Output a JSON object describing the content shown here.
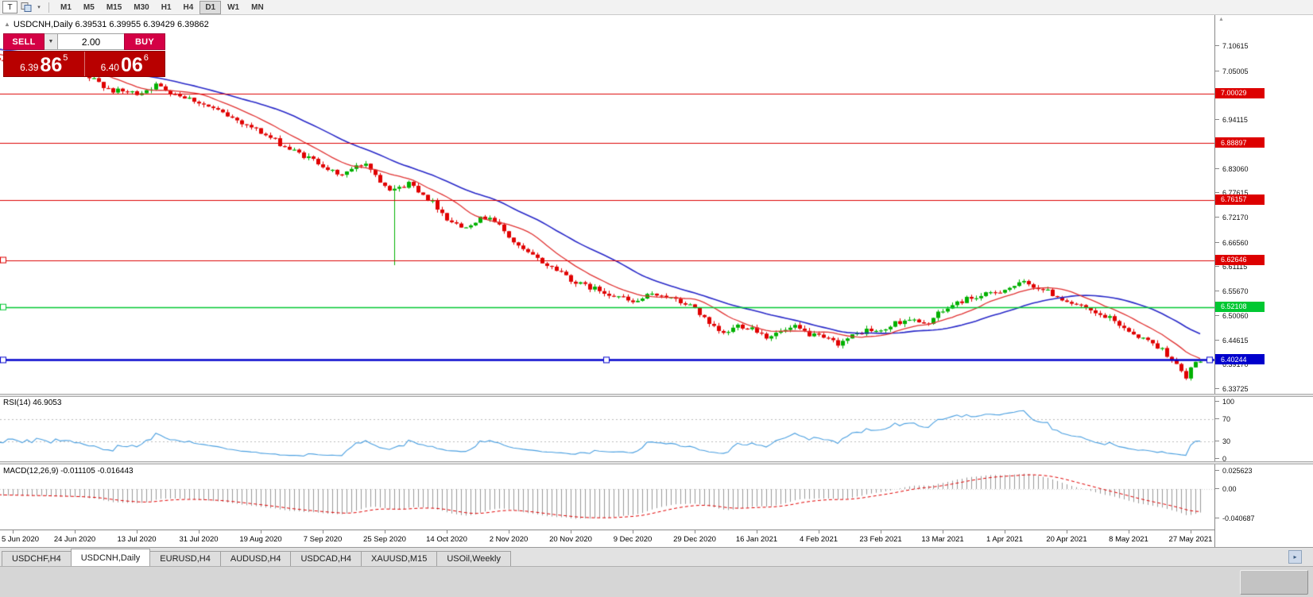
{
  "toolbar": {
    "tool_button": "T",
    "timeframes": [
      "M1",
      "M5",
      "M15",
      "M30",
      "H1",
      "H4",
      "D1",
      "W1",
      "MN"
    ],
    "active_timeframe": "D1"
  },
  "chart": {
    "title": "USDCNH,Daily 6.39531 6.39955 6.39429 6.39862"
  },
  "trade_panel": {
    "sell_label": "SELL",
    "buy_label": "BUY",
    "volume": "2.00",
    "sell_price": {
      "main": "6.39",
      "pips": "86",
      "pt": "5"
    },
    "buy_price": {
      "main": "6.40",
      "pips": "06",
      "pt": "6"
    }
  },
  "price_axis": {
    "labels": [
      "7.10615",
      "7.05005",
      "6.94115",
      "6.83060",
      "6.77615",
      "6.72170",
      "6.66560",
      "6.61115",
      "6.55670",
      "6.50060",
      "6.44615",
      "6.39170",
      "6.33725"
    ]
  },
  "rsi": {
    "label": "RSI(14) 46.9053",
    "axis": [
      "100",
      "70",
      "30",
      "0"
    ]
  },
  "macd": {
    "label": "MACD(12,26,9) -0.011105 -0.016443",
    "axis": [
      "0.025623",
      "0.00",
      "-0.040687"
    ]
  },
  "date_axis": [
    "5 Jun 2020",
    "24 Jun 2020",
    "13 Jul 2020",
    "31 Jul 2020",
    "19 Aug 2020",
    "7 Sep 2020",
    "25 Sep 2020",
    "14 Oct 2020",
    "2 Nov 2020",
    "20 Nov 2020",
    "9 Dec 2020",
    "29 Dec 2020",
    "16 Jan 2021",
    "4 Feb 2021",
    "23 Feb 2021",
    "13 Mar 2021",
    "1 Apr 2021",
    "20 Apr 2021",
    "8 May 2021",
    "27 May 2021"
  ],
  "tabbar": {
    "tabs": [
      "USDCHF,H4",
      "USDCNH,Daily",
      "EURUSD,H4",
      "AUDUSD,H4",
      "USDCAD,H4",
      "XAUUSD,M15",
      "USOil,Weekly"
    ],
    "active": "USDCNH,Daily",
    "active_index": 1
  },
  "chart_data": {
    "type": "candlestick",
    "symbol": "USDCNH",
    "timeframe": "Daily",
    "ohlc_current": {
      "open": 6.39531,
      "high": 6.39955,
      "low": 6.39429,
      "close": 6.39862
    },
    "bid": 6.39865,
    "ask": 6.40066,
    "visible_price_range": {
      "min": 6.3337,
      "max": 7.165
    },
    "levels": [
      {
        "price": 7.00029,
        "color": "#dd0000",
        "width": 1.2,
        "handles": []
      },
      {
        "price": 6.88897,
        "color": "#dd0000",
        "width": 1.2,
        "handles": []
      },
      {
        "price": 6.76157,
        "color": "#dd0000",
        "width": 1.2,
        "handles": []
      },
      {
        "price": 6.62646,
        "color": "#dd0000",
        "width": 1.2,
        "handles": [
          0
        ]
      },
      {
        "price": 6.52108,
        "color": "#00c832",
        "width": 1.4,
        "handles": [
          0
        ]
      },
      {
        "price": 6.40244,
        "color": "#0000cc",
        "width": 2.4,
        "handles": [
          0,
          0.5,
          1
        ]
      }
    ],
    "price_anchors": [
      [
        -40,
        7.125
      ],
      [
        -30,
        7.115
      ],
      [
        -20,
        7.102
      ],
      [
        -12,
        7.096
      ],
      [
        -6,
        7.082
      ],
      [
        0,
        7.075
      ],
      [
        6,
        7.062
      ],
      [
        12,
        7.05
      ],
      [
        17,
        7.03
      ],
      [
        21,
        7.006
      ],
      [
        26,
        7.0
      ],
      [
        30,
        7.018
      ],
      [
        34,
        7.0
      ],
      [
        38,
        6.985
      ],
      [
        42,
        6.965
      ],
      [
        46,
        6.945
      ],
      [
        50,
        6.925
      ],
      [
        54,
        6.9
      ],
      [
        58,
        6.875
      ],
      [
        62,
        6.855
      ],
      [
        65,
        6.84
      ],
      [
        68,
        6.815
      ],
      [
        71,
        6.83
      ],
      [
        74,
        6.845
      ],
      [
        77,
        6.805
      ],
      [
        80,
        6.78
      ],
      [
        83,
        6.8
      ],
      [
        86,
        6.775
      ],
      [
        89,
        6.745
      ],
      [
        91,
        6.72
      ],
      [
        94,
        6.7
      ],
      [
        97,
        6.715
      ],
      [
        100,
        6.725
      ],
      [
        103,
        6.69
      ],
      [
        106,
        6.655
      ],
      [
        109,
        6.635
      ],
      [
        112,
        6.615
      ],
      [
        115,
        6.6
      ],
      [
        118,
        6.575
      ],
      [
        121,
        6.565
      ],
      [
        124,
        6.555
      ],
      [
        127,
        6.545
      ],
      [
        130,
        6.53
      ],
      [
        133,
        6.545
      ],
      [
        136,
        6.55
      ],
      [
        139,
        6.535
      ],
      [
        143,
        6.52
      ],
      [
        146,
        6.48
      ],
      [
        149,
        6.46
      ],
      [
        152,
        6.48
      ],
      [
        155,
        6.475
      ],
      [
        158,
        6.455
      ],
      [
        161,
        6.465
      ],
      [
        164,
        6.475
      ],
      [
        167,
        6.46
      ],
      [
        170,
        6.45
      ],
      [
        173,
        6.44
      ],
      [
        176,
        6.455
      ],
      [
        179,
        6.47
      ],
      [
        182,
        6.465
      ],
      [
        185,
        6.485
      ],
      [
        188,
        6.495
      ],
      [
        191,
        6.48
      ],
      [
        194,
        6.505
      ],
      [
        197,
        6.525
      ],
      [
        200,
        6.54
      ],
      [
        203,
        6.545
      ],
      [
        206,
        6.555
      ],
      [
        209,
        6.565
      ],
      [
        212,
        6.575
      ],
      [
        215,
        6.565
      ],
      [
        218,
        6.55
      ],
      [
        221,
        6.535
      ],
      [
        224,
        6.52
      ],
      [
        227,
        6.505
      ],
      [
        230,
        6.495
      ],
      [
        233,
        6.475
      ],
      [
        236,
        6.455
      ],
      [
        239,
        6.44
      ],
      [
        241,
        6.425
      ],
      [
        243,
        6.405
      ],
      [
        244,
        6.39
      ],
      [
        245,
        6.375
      ],
      [
        246,
        6.36
      ],
      [
        247,
        6.385
      ],
      [
        248,
        6.395
      ],
      [
        249,
        6.3986
      ]
    ],
    "spike": {
      "index": 80,
      "low": 6.615
    },
    "moving_averages": [
      {
        "period": 12,
        "color": "#e03232"
      },
      {
        "period": 30,
        "color": "#2828c8"
      }
    ],
    "candle_colors": {
      "up": "#00b000",
      "down": "#e00000"
    },
    "rsi": {
      "period": 14,
      "color": "#4a9fe0",
      "levels": [
        70,
        30
      ]
    },
    "macd": {
      "fast": 12,
      "slow": 26,
      "signal": 9,
      "bar_color": "#999999",
      "signal_color": "#e00000"
    }
  }
}
